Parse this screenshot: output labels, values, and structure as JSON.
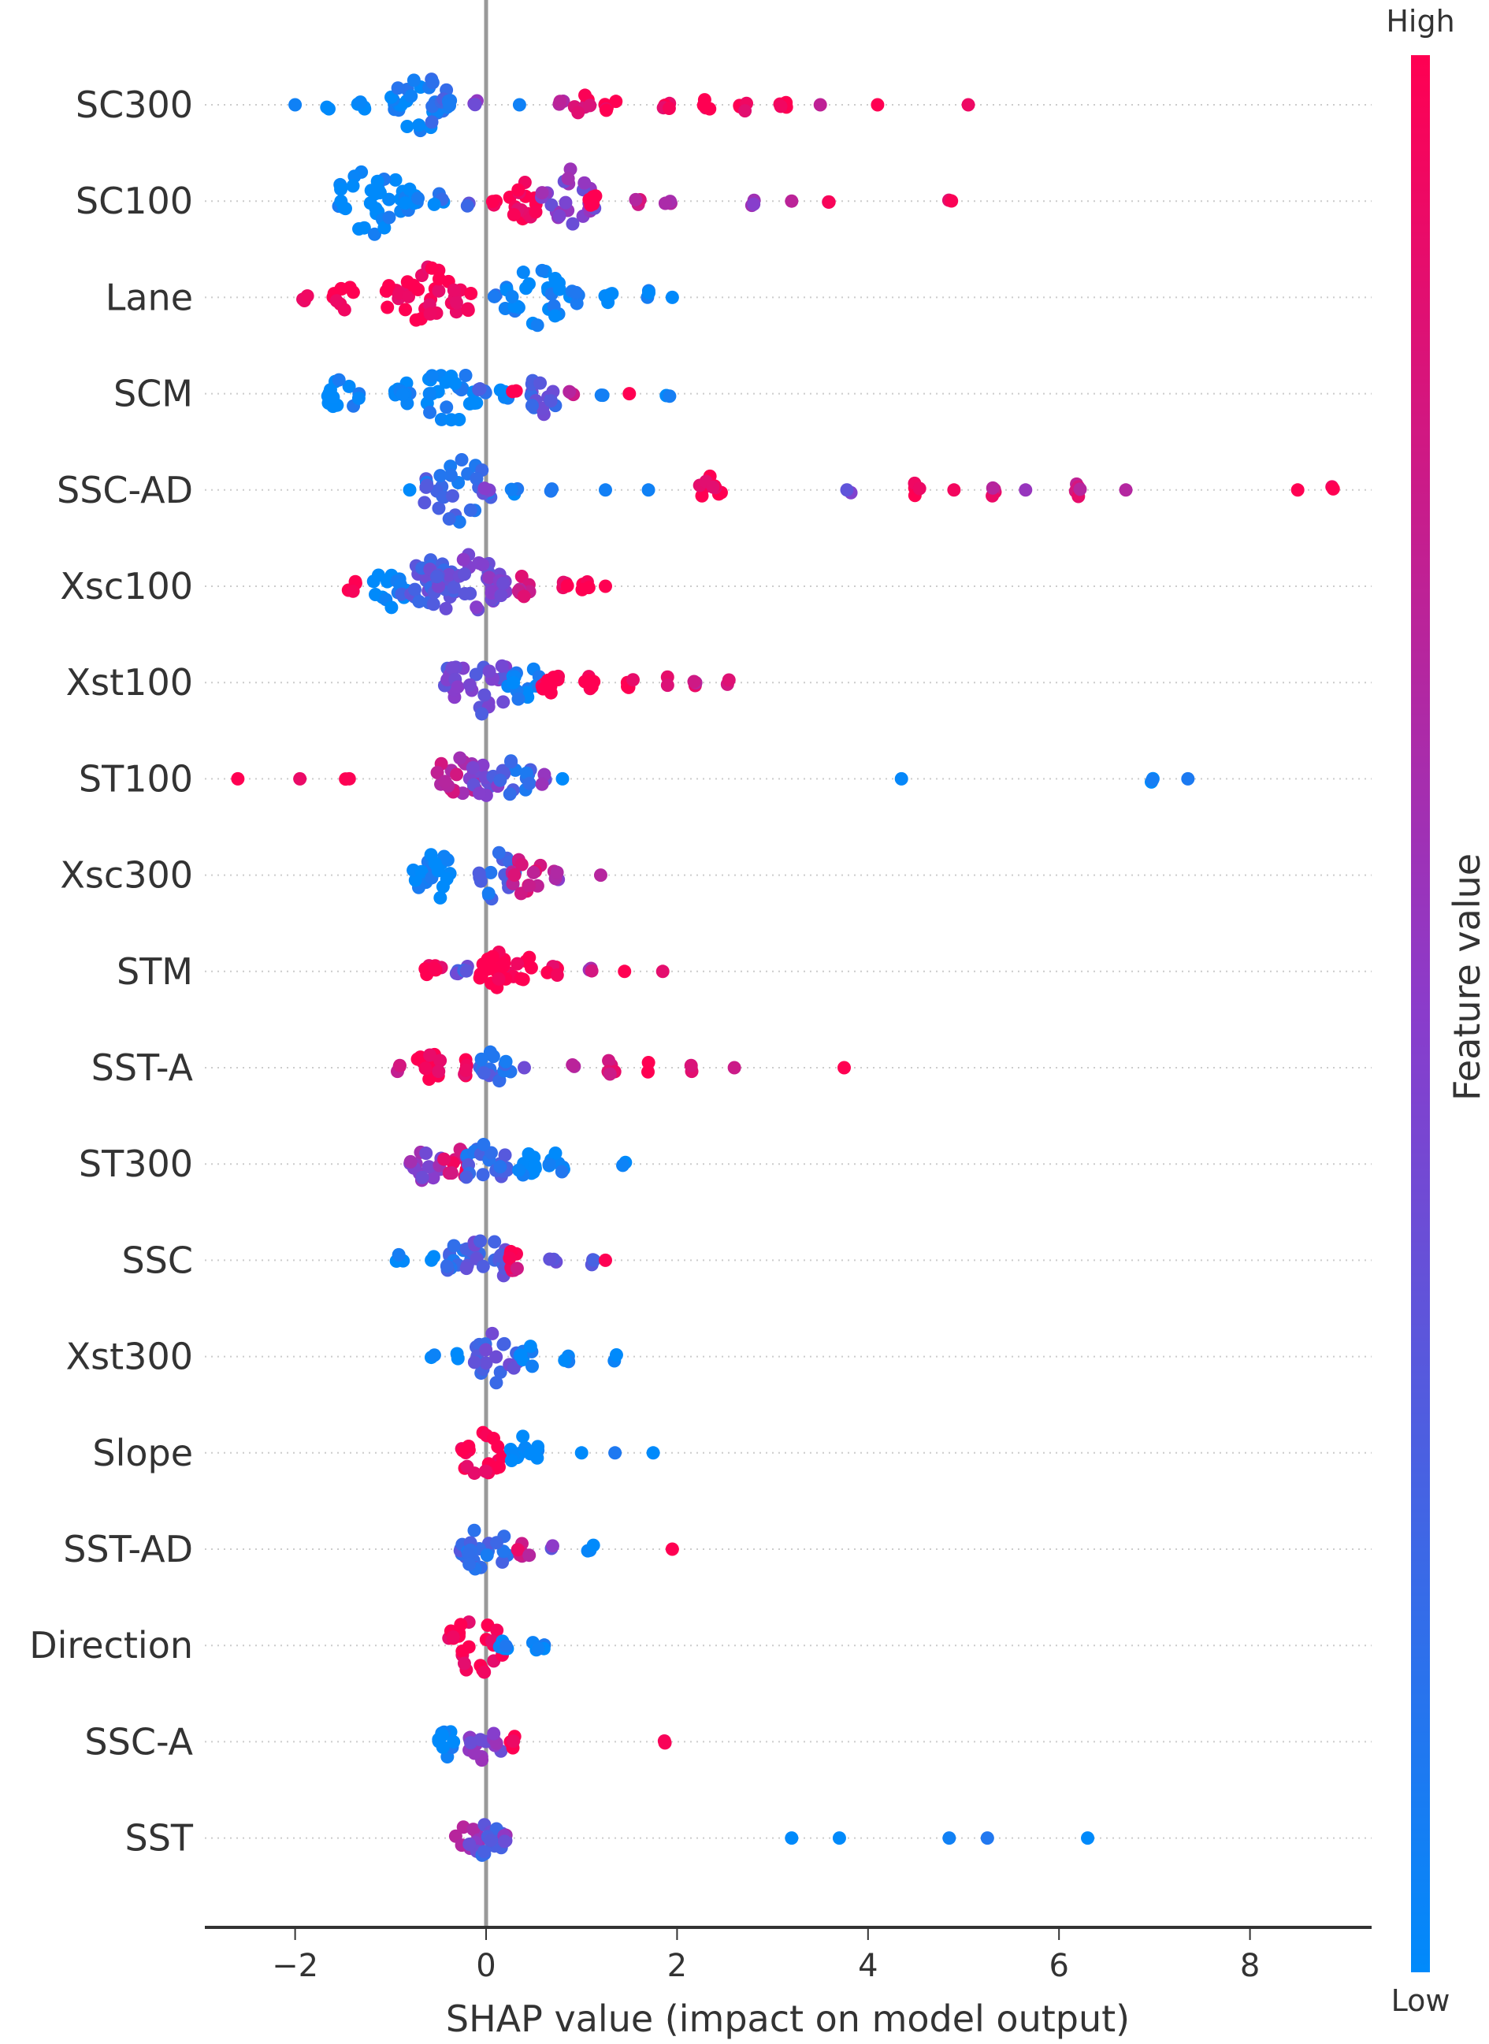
{
  "chart_data": {
    "type": "scatter",
    "subtype": "shap-beeswarm",
    "xlabel": "SHAP value (impact on model output)",
    "xlim": [
      -2.95,
      9.2
    ],
    "xticks": [
      -2,
      0,
      2,
      4,
      6,
      8
    ],
    "xtick_labels": [
      "−2",
      "0",
      "2",
      "4",
      "6",
      "8"
    ],
    "colorbar": {
      "label": "Feature value",
      "high": "High",
      "low": "Low",
      "low_color": "#008afb",
      "high_color": "#ff0052"
    },
    "cluster_format": [
      "shap_value",
      "feature_value_0_to_1",
      "count"
    ],
    "features": [
      {
        "name": "SC300",
        "clusters": [
          [
            -2,
            0,
            1
          ],
          [
            -1.65,
            0,
            2
          ],
          [
            -1.3,
            0,
            4
          ],
          [
            -0.9,
            0,
            6
          ],
          [
            -0.7,
            0.1,
            25
          ],
          [
            -0.4,
            0.2,
            6
          ],
          [
            -0.1,
            0.5,
            3
          ],
          [
            0.35,
            0,
            1
          ],
          [
            0.8,
            0.7,
            3
          ],
          [
            1.0,
            0.9,
            8
          ],
          [
            1.3,
            1,
            5
          ],
          [
            1.9,
            1,
            4
          ],
          [
            2.3,
            1,
            4
          ],
          [
            2.7,
            1,
            4
          ],
          [
            3.1,
            1,
            4
          ],
          [
            3.5,
            0.6,
            1
          ],
          [
            4.1,
            1,
            1
          ],
          [
            5.05,
            1,
            1
          ]
        ]
      },
      {
        "name": "SC100",
        "clusters": [
          [
            -1.2,
            0,
            30
          ],
          [
            -0.8,
            0,
            8
          ],
          [
            -0.5,
            0.1,
            5
          ],
          [
            -0.2,
            0.3,
            2
          ],
          [
            0.1,
            1,
            3
          ],
          [
            0.4,
            1,
            15
          ],
          [
            0.85,
            0.5,
            25
          ],
          [
            1.1,
            1,
            5
          ],
          [
            1.6,
            0.8,
            3
          ],
          [
            1.9,
            0.6,
            3
          ],
          [
            2.8,
            0.6,
            3
          ],
          [
            3.2,
            0.7,
            1
          ],
          [
            3.6,
            1,
            2
          ],
          [
            4.85,
            1,
            2
          ]
        ]
      },
      {
        "name": "Lane",
        "clusters": [
          [
            -1.9,
            1,
            3
          ],
          [
            -1.5,
            1,
            10
          ],
          [
            -1.0,
            1,
            8
          ],
          [
            -0.5,
            1,
            30
          ],
          [
            0.1,
            0.2,
            3
          ],
          [
            0.5,
            0,
            25
          ],
          [
            0.9,
            0,
            6
          ],
          [
            1.3,
            0,
            5
          ],
          [
            1.7,
            0,
            3
          ],
          [
            1.95,
            0,
            1
          ]
        ]
      },
      {
        "name": "SCM",
        "clusters": [
          [
            -1.5,
            0,
            15
          ],
          [
            -0.9,
            0,
            10
          ],
          [
            -0.4,
            0,
            25
          ],
          [
            -0.05,
            0.2,
            4
          ],
          [
            0.2,
            0,
            5
          ],
          [
            0.3,
            1,
            2
          ],
          [
            0.6,
            0.3,
            15
          ],
          [
            0.9,
            0.8,
            3
          ],
          [
            1.2,
            0,
            2
          ],
          [
            1.5,
            1,
            1
          ],
          [
            1.9,
            0,
            2
          ]
        ]
      },
      {
        "name": "SSC-AD",
        "clusters": [
          [
            -0.8,
            0,
            1
          ],
          [
            -0.3,
            0.2,
            30
          ],
          [
            0,
            0.4,
            3
          ],
          [
            0.3,
            0,
            3
          ],
          [
            0.7,
            0,
            2
          ],
          [
            1.25,
            0,
            1
          ],
          [
            1.7,
            0,
            1
          ],
          [
            2.35,
            1,
            10
          ],
          [
            3.8,
            0.4,
            2
          ],
          [
            4.5,
            1,
            4
          ],
          [
            4.9,
            1,
            1
          ],
          [
            5.3,
            0.8,
            4
          ],
          [
            5.65,
            0.6,
            1
          ],
          [
            6.2,
            0.8,
            5
          ],
          [
            6.7,
            0.7,
            1
          ],
          [
            8.5,
            1,
            1
          ],
          [
            8.85,
            1,
            2
          ]
        ]
      },
      {
        "name": "Xsc100",
        "clusters": [
          [
            -1.4,
            1,
            4
          ],
          [
            -1,
            0,
            15
          ],
          [
            -0.6,
            0.3,
            25
          ],
          [
            -0.2,
            0.4,
            30
          ],
          [
            0.1,
            0.5,
            10
          ],
          [
            0.4,
            0.8,
            8
          ],
          [
            0.8,
            1,
            5
          ],
          [
            1.05,
            1,
            4
          ],
          [
            1.25,
            1,
            1
          ]
        ]
      },
      {
        "name": "Xst100",
        "clusters": [
          [
            -0.1,
            0.4,
            30
          ],
          [
            0.4,
            0,
            15
          ],
          [
            0.7,
            1,
            10
          ],
          [
            1.1,
            1,
            6
          ],
          [
            1.5,
            1,
            4
          ],
          [
            1.9,
            0.8,
            2
          ],
          [
            2.2,
            0.8,
            3
          ],
          [
            2.55,
            0.8,
            2
          ]
        ]
      },
      {
        "name": "ST100",
        "clusters": [
          [
            -2.6,
            1,
            1
          ],
          [
            -1.95,
            1,
            1
          ],
          [
            -1.45,
            1,
            2
          ],
          [
            -0.3,
            0.7,
            20
          ],
          [
            0,
            0.4,
            15
          ],
          [
            0.3,
            0.2,
            15
          ],
          [
            0.6,
            0.5,
            3
          ],
          [
            0.8,
            0,
            1
          ],
          [
            4.35,
            0,
            1
          ],
          [
            6.95,
            0,
            3
          ],
          [
            7.35,
            0,
            1
          ]
        ]
      },
      {
        "name": "Xsc300",
        "clusters": [
          [
            -0.55,
            0,
            20
          ],
          [
            0.1,
            0.2,
            20
          ],
          [
            0.4,
            0.8,
            15
          ],
          [
            0.75,
            0.6,
            4
          ],
          [
            1.2,
            0.8,
            1
          ]
        ]
      },
      {
        "name": "STM",
        "clusters": [
          [
            -0.55,
            1,
            8
          ],
          [
            -0.25,
            0.3,
            6
          ],
          [
            0.05,
            1,
            10
          ],
          [
            0.25,
            1,
            20
          ],
          [
            0.7,
            1,
            5
          ],
          [
            1.1,
            0.7,
            3
          ],
          [
            1.45,
            1,
            1
          ],
          [
            1.85,
            1,
            1
          ]
        ]
      },
      {
        "name": "SST-A",
        "clusters": [
          [
            -0.9,
            0.8,
            3
          ],
          [
            -0.6,
            1,
            12
          ],
          [
            -0.2,
            1,
            5
          ],
          [
            0.1,
            0.2,
            15
          ],
          [
            0.4,
            0.3,
            1
          ],
          [
            0.9,
            0.6,
            2
          ],
          [
            1.3,
            0.8,
            5
          ],
          [
            1.7,
            1,
            2
          ],
          [
            2.15,
            0.8,
            2
          ],
          [
            2.6,
            0.8,
            1
          ],
          [
            3.75,
            1,
            1
          ]
        ]
      },
      {
        "name": "ST300",
        "clusters": [
          [
            -0.65,
            0.5,
            15
          ],
          [
            -0.3,
            0.9,
            12
          ],
          [
            0,
            0.2,
            20
          ],
          [
            0.4,
            0,
            10
          ],
          [
            0.75,
            0,
            8
          ],
          [
            1.45,
            0,
            2
          ]
        ]
      },
      {
        "name": "SSC",
        "clusters": [
          [
            -0.9,
            0,
            4
          ],
          [
            -0.55,
            0,
            2
          ],
          [
            -0.3,
            0.2,
            12
          ],
          [
            0,
            0.3,
            20
          ],
          [
            0.3,
            0.9,
            8
          ],
          [
            0.7,
            0.3,
            3
          ],
          [
            1.1,
            0.3,
            3
          ],
          [
            1.25,
            1,
            1
          ]
        ]
      },
      {
        "name": "Xst300",
        "clusters": [
          [
            -0.55,
            0,
            2
          ],
          [
            -0.3,
            0,
            2
          ],
          [
            0.1,
            0.3,
            20
          ],
          [
            0.45,
            0,
            8
          ],
          [
            0.85,
            0,
            3
          ],
          [
            1.35,
            0,
            2
          ]
        ]
      },
      {
        "name": "Slope",
        "clusters": [
          [
            -0.05,
            1,
            20
          ],
          [
            0.4,
            0,
            12
          ],
          [
            1,
            0,
            1
          ],
          [
            1.35,
            0,
            1
          ],
          [
            1.75,
            0,
            1
          ]
        ]
      },
      {
        "name": "SST-AD",
        "clusters": [
          [
            -0.2,
            0.2,
            6
          ],
          [
            0,
            0.2,
            20
          ],
          [
            0.4,
            0.8,
            6
          ],
          [
            0.7,
            0.4,
            2
          ],
          [
            1.1,
            0,
            3
          ],
          [
            1.95,
            1,
            1
          ]
        ]
      },
      {
        "name": "Direction",
        "clusters": [
          [
            -0.1,
            1,
            25
          ],
          [
            0.2,
            0,
            5
          ],
          [
            0.55,
            0,
            5
          ]
        ]
      },
      {
        "name": "SSC-A",
        "clusters": [
          [
            -0.4,
            0,
            10
          ],
          [
            0,
            0.5,
            15
          ],
          [
            0.3,
            1,
            4
          ],
          [
            1.85,
            1,
            2
          ]
        ]
      },
      {
        "name": "SST",
        "clusters": [
          [
            -0.2,
            0.6,
            10
          ],
          [
            0,
            0.3,
            15
          ],
          [
            0.2,
            0.5,
            4
          ],
          [
            3.2,
            0,
            1
          ],
          [
            3.7,
            0,
            1
          ],
          [
            4.85,
            0,
            1
          ],
          [
            5.25,
            0,
            1
          ],
          [
            6.3,
            0,
            1
          ]
        ]
      }
    ]
  }
}
